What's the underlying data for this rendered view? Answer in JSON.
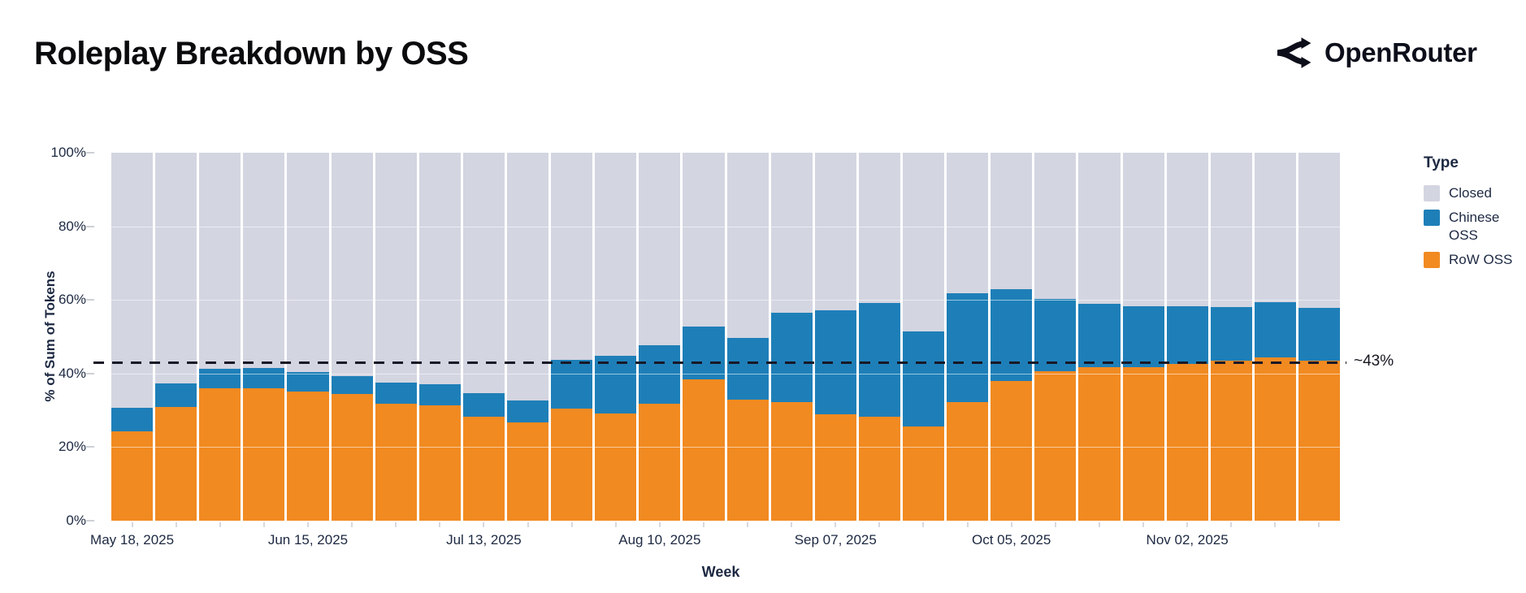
{
  "header": {
    "title": "Roleplay Breakdown by OSS",
    "brand": "OpenRouter"
  },
  "chart_data": {
    "type": "bar",
    "stacked": true,
    "percent": true,
    "title": "Roleplay Breakdown by OSS",
    "xlabel": "Week",
    "ylabel": "% of Sum of Tokens",
    "ylim": [
      0,
      100
    ],
    "y_ticks": [
      {
        "value": 0,
        "label": "0%"
      },
      {
        "value": 20,
        "label": "20%"
      },
      {
        "value": 40,
        "label": "40%"
      },
      {
        "value": 60,
        "label": "60%"
      },
      {
        "value": 80,
        "label": "80%"
      },
      {
        "value": 100,
        "label": "100%"
      }
    ],
    "y_gridlines": [
      20,
      40,
      60,
      80
    ],
    "categories": [
      "May 18, 2025",
      "May 25, 2025",
      "Jun 01, 2025",
      "Jun 08, 2025",
      "Jun 15, 2025",
      "Jun 22, 2025",
      "Jun 29, 2025",
      "Jul 06, 2025",
      "Jul 13, 2025",
      "Jul 20, 2025",
      "Jul 27, 2025",
      "Aug 03, 2025",
      "Aug 10, 2025",
      "Aug 17, 2025",
      "Aug 24, 2025",
      "Aug 31, 2025",
      "Sep 07, 2025",
      "Sep 14, 2025",
      "Sep 21, 2025",
      "Sep 28, 2025",
      "Oct 05, 2025",
      "Oct 12, 2025",
      "Oct 19, 2025",
      "Oct 26, 2025",
      "Nov 02, 2025",
      "Nov 09, 2025",
      "Nov 16, 2025",
      "Nov 23, 2025"
    ],
    "x_tick_label_indices": [
      0,
      4,
      8,
      12,
      16,
      20,
      24
    ],
    "x_tick_labels": [
      "May 18, 2025",
      "Jun 15, 2025",
      "Jul 13, 2025",
      "Aug 10, 2025",
      "Sep 07, 2025",
      "Oct 05, 2025",
      "Nov 02, 2025"
    ],
    "series": [
      {
        "name": "RoW OSS",
        "color": "#F18A21",
        "values": [
          24.3,
          31.0,
          36.0,
          36.0,
          35.1,
          34.4,
          31.9,
          31.4,
          28.3,
          26.7,
          30.4,
          29.1,
          31.7,
          38.4,
          32.9,
          32.2,
          28.9,
          28.3,
          25.6,
          32.2,
          38.0,
          40.7,
          41.8,
          41.7,
          42.7,
          43.5,
          44.4,
          43.6
        ]
      },
      {
        "name": "Chinese OSS",
        "color": "#1E7FB8",
        "values": [
          6.4,
          6.3,
          5.3,
          5.4,
          5.3,
          4.9,
          5.6,
          5.7,
          6.4,
          5.9,
          13.3,
          15.7,
          16.0,
          14.4,
          16.8,
          24.3,
          28.3,
          30.9,
          25.8,
          29.6,
          25.0,
          19.5,
          17.1,
          16.5,
          15.6,
          14.5,
          14.9,
          14.2
        ]
      },
      {
        "name": "Closed",
        "color": "#D3D5E1",
        "values": [
          69.3,
          62.7,
          58.7,
          58.6,
          59.6,
          60.7,
          62.5,
          62.9,
          65.3,
          67.4,
          56.3,
          55.2,
          52.3,
          47.2,
          50.3,
          43.5,
          42.8,
          40.8,
          48.6,
          38.2,
          37.0,
          39.8,
          41.1,
          41.8,
          41.7,
          42.0,
          40.7,
          42.2
        ]
      }
    ],
    "reference_line": {
      "value": 43,
      "label": "~43%",
      "style": "dashed",
      "color": "#181826"
    },
    "legend": {
      "title": "Type",
      "position": "right",
      "entries": [
        {
          "label": "Closed",
          "color": "#D3D5E1"
        },
        {
          "label": "Chinese OSS",
          "color": "#1E7FB8"
        },
        {
          "label": "RoW OSS",
          "color": "#F18A21"
        }
      ]
    }
  }
}
